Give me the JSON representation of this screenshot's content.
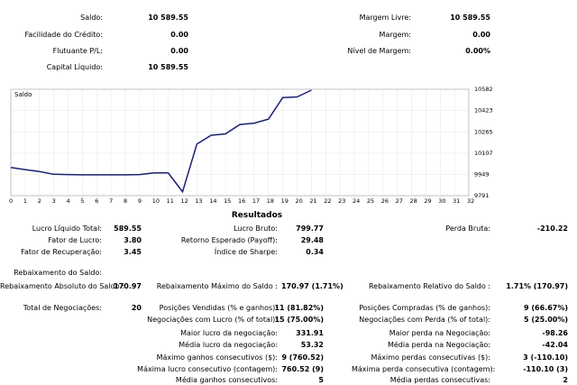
{
  "summary": {
    "saldo_label": "Saldo:",
    "saldo_value": "10 589.55",
    "credito_label": "Facilidade do Crédito:",
    "credito_value": "0.00",
    "flutuante_label": "Flutuante P/L:",
    "flutuante_value": "0.00",
    "capital_label": "Capital Líquido:",
    "capital_value": "10 589.55",
    "margem_livre_label": "Margem Livre:",
    "margem_livre_value": "10 589.55",
    "margem_label": "Margem:",
    "margem_value": "0.00",
    "nivel_label": "Nível de Margem:",
    "nivel_value": "0.00%"
  },
  "chart_data": {
    "type": "line",
    "title": "Saldo",
    "series": [
      {
        "values": [
          [
            0,
            10000
          ],
          [
            1,
            9985
          ],
          [
            2,
            9970
          ],
          [
            3,
            9950
          ],
          [
            4,
            9948
          ],
          [
            5,
            9946
          ],
          [
            6,
            9946
          ],
          [
            7,
            9946
          ],
          [
            8,
            9946
          ],
          [
            9,
            9948
          ],
          [
            10,
            9960
          ],
          [
            11,
            9960
          ],
          [
            12,
            9820
          ],
          [
            13,
            10175
          ],
          [
            14,
            10240
          ],
          [
            15,
            10250
          ],
          [
            16,
            10320
          ],
          [
            17,
            10330
          ],
          [
            18,
            10360
          ],
          [
            19,
            10520
          ],
          [
            20,
            10525
          ],
          [
            21,
            10575
          ]
        ]
      }
    ],
    "x_ticks": [
      0,
      1,
      2,
      3,
      4,
      5,
      6,
      7,
      8,
      9,
      10,
      11,
      12,
      13,
      14,
      15,
      16,
      17,
      18,
      19,
      20,
      21,
      22,
      23,
      24,
      25,
      26,
      27,
      28,
      29,
      30,
      31,
      32
    ],
    "y_ticks": [
      "10582",
      "10423",
      "10265",
      "10107",
      "9949",
      "9791"
    ],
    "ylim": [
      9791,
      10582
    ],
    "xlim": [
      0,
      32
    ],
    "line_color": "#1a2070",
    "grid": true
  },
  "results": {
    "title": "Resultados",
    "lucro_liquido_label": "Lucro Líquido Total:",
    "lucro_liquido_value": "589.55",
    "lucro_bruto_label": "Lucro Bruto:",
    "lucro_bruto_value": "799.77",
    "perda_bruta_label": "Perda Bruta:",
    "perda_bruta_value": "-210.22",
    "fator_lucro_label": "Fator de Lucro:",
    "fator_lucro_value": "3.80",
    "retorno_label": "Retorno Esperado (Payoff):",
    "retorno_value": "29.48",
    "fator_rec_label": "Fator de Recuperação:",
    "fator_rec_value": "3.45",
    "sharpe_label": "Índice de Sharpe:",
    "sharpe_value": "0.34",
    "rebaixamento_label": "Rebaixamento do Saldo:",
    "reb_abs_label": "Rebaixamento Absoluto do Saldo :",
    "reb_abs_value": "170.97",
    "reb_max_label": "Rebaixamento Máximo do Saldo :",
    "reb_max_value": "170.97 (1.71%)",
    "reb_rel_label": "Rebaixamento Relativo do Saldo :",
    "reb_rel_value": "1.71% (170.97)",
    "total_neg_label": "Total de Negociações:",
    "total_neg_value": "20",
    "pos_vendidas_label": "Posições Vendidas (% e ganhos):",
    "pos_vendidas_value": "11 (81.82%)",
    "pos_compradas_label": "Posições Compradas (% de ganhos):",
    "pos_compradas_value": "9 (66.67%)",
    "neg_lucro_label": "Negociações com Lucro (% of total):",
    "neg_lucro_value": "15 (75.00%)",
    "neg_perda_label": "Negociações com Perda (% of total):",
    "neg_perda_value": "5 (25.00%)",
    "maior_lucro_label": "Maior lucro da negociação:",
    "maior_lucro_value": "331.91",
    "maior_perda_label": "Maior perda na Negociação:",
    "maior_perda_value": "-98.26",
    "media_lucro_label": "Média lucro da negociação:",
    "media_lucro_value": "53.32",
    "media_perda_label": "Média perda na Negociação:",
    "media_perda_value": "-42.04",
    "max_ganhos_label": "Máximo ganhos consecutivos ($):",
    "max_ganhos_value": "9 (760.52)",
    "max_perdas_label": "Máximo perdas consecutivas ($):",
    "max_perdas_value": "3 (-110.10)",
    "max_lucro_cons_label": "Máxima lucro consecutivo (contagem):",
    "max_lucro_cons_value": "760.52 (9)",
    "max_perda_cons_label": "Máxima perda consecutiva (contagem):",
    "max_perda_cons_value": "-110.10 (3)",
    "media_ganhos_label": "Média ganhos consecutivos:",
    "media_ganhos_value": "5",
    "media_perdas_label": "Média perdas consecutivas:",
    "media_perdas_value": "2"
  }
}
